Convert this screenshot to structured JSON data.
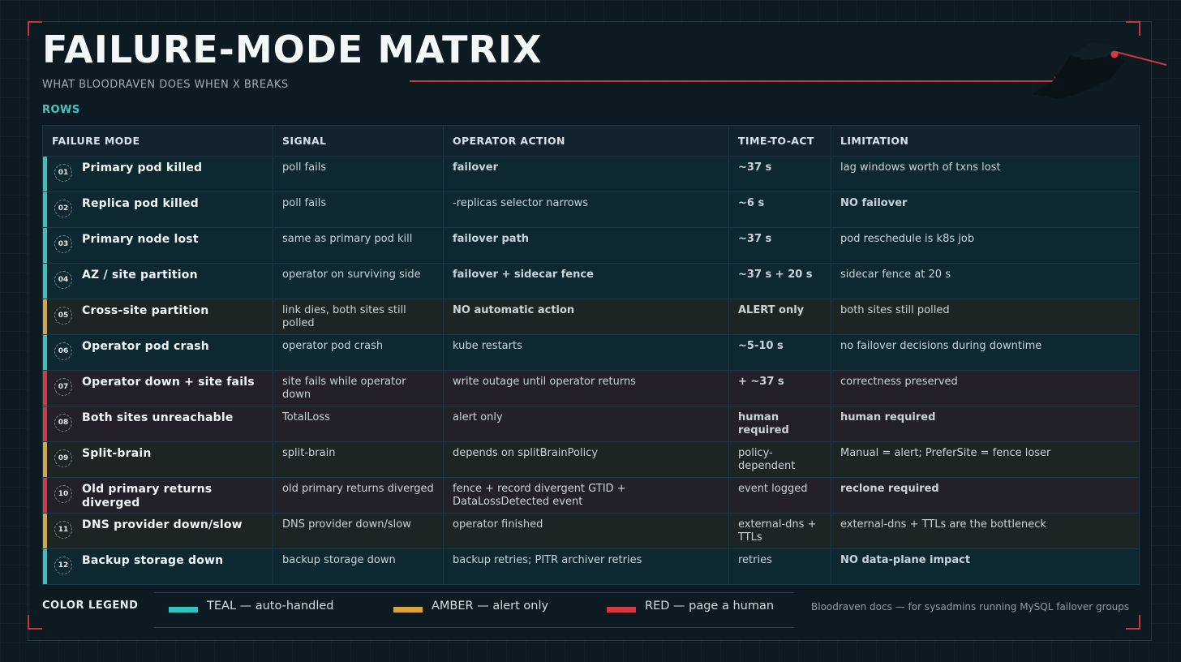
{
  "header": {
    "title": "FAILURE-MODE MATRIX",
    "subtitle": "WHAT BLOODRAVEN DOES WHEN X BREAKS",
    "section_label": "ROWS"
  },
  "columns": [
    "FAILURE MODE",
    "SIGNAL",
    "OPERATOR ACTION",
    "TIME-TO-ACT",
    "LIMITATION"
  ],
  "rows": [
    {
      "num": "01",
      "tone": "teal",
      "mode": "Primary pod killed",
      "signal": "poll fails",
      "action": "failover",
      "time": "~37 s",
      "limitation": "lag windows worth of txns lost"
    },
    {
      "num": "02",
      "tone": "teal",
      "mode": "Replica pod killed",
      "signal": "poll fails",
      "action": "-replicas selector narrows",
      "time": "~6 s",
      "limitation": "NO failover"
    },
    {
      "num": "03",
      "tone": "teal",
      "mode": "Primary node lost",
      "signal": "same as primary pod kill",
      "action": "failover path",
      "time": "~37 s",
      "limitation": "pod reschedule is k8s job"
    },
    {
      "num": "04",
      "tone": "teal",
      "mode": "AZ / site partition",
      "signal": "operator on surviving side",
      "action": "failover + sidecar fence",
      "time": "~37 s + 20 s",
      "limitation": "sidecar fence at 20 s"
    },
    {
      "num": "05",
      "tone": "amber",
      "mode": "Cross-site partition",
      "signal": "link dies, both sites still polled",
      "action": "NO automatic action",
      "time": "ALERT only",
      "limitation": "both sites still polled"
    },
    {
      "num": "06",
      "tone": "teal",
      "mode": "Operator pod crash",
      "signal": "operator pod crash",
      "action": "kube restarts",
      "time": "~5-10 s",
      "limitation": "no failover decisions during downtime"
    },
    {
      "num": "07",
      "tone": "red",
      "mode": "Operator down + site fails",
      "signal": "site fails while operator down",
      "action": "write outage until operator returns",
      "time": "+ ~37 s",
      "limitation": "correctness preserved"
    },
    {
      "num": "08",
      "tone": "red",
      "mode": "Both sites unreachable",
      "signal": "TotalLoss",
      "action": "alert only",
      "time": "human required",
      "limitation": "human required"
    },
    {
      "num": "09",
      "tone": "amber",
      "mode": "Split-brain",
      "signal": "split-brain",
      "action": "depends on splitBrainPolicy",
      "time": "policy-dependent",
      "limitation": "Manual = alert; PreferSite = fence loser"
    },
    {
      "num": "10",
      "tone": "red",
      "mode": "Old primary returns diverged",
      "signal": "old primary returns diverged",
      "action": "fence + record divergent GTID + DataLossDetected event",
      "time": "event logged",
      "limitation": "reclone required"
    },
    {
      "num": "11",
      "tone": "amber",
      "mode": "DNS provider down/slow",
      "signal": "DNS provider down/slow",
      "action": "operator finished",
      "time": "external-dns + TTLs",
      "limitation": "external-dns + TTLs are the bottleneck"
    },
    {
      "num": "12",
      "tone": "teal",
      "mode": "Backup storage down",
      "signal": "backup storage down",
      "action": "backup retries; PITR archiver retries",
      "time": "retries",
      "limitation": "NO data-plane impact"
    }
  ],
  "legend": {
    "label": "COLOR LEGEND",
    "items": [
      {
        "color": "#36c3be",
        "text": "TEAL — auto-handled"
      },
      {
        "color": "#d9a43d",
        "text": "AMBER — alert only"
      },
      {
        "color": "#d03b3f",
        "text": "RED — page a human"
      }
    ]
  },
  "footer": "Bloodraven docs — for sysadmins running MySQL failover groups"
}
